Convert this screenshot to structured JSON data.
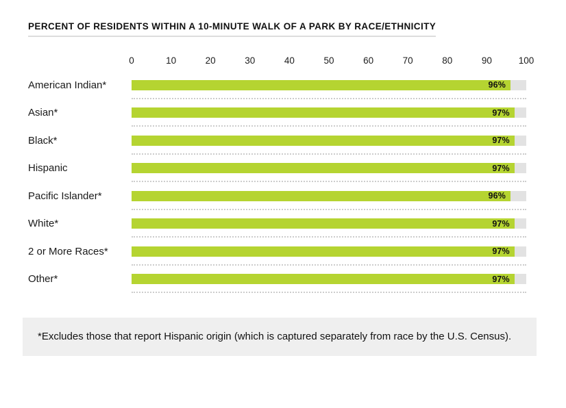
{
  "page": {
    "title": "PERCENT OF RESIDENTS WITHIN A 10-MINUTE WALK OF A PARK BY RACE/ETHNICITY",
    "footnote": "*Excludes those that report Hispanic origin (which is captured separately from race by the U.S. Census)."
  },
  "chart_data": {
    "type": "bar",
    "orientation": "horizontal",
    "title": "PERCENT OF RESIDENTS WITHIN A 10-MINUTE WALK OF A PARK BY RACE/ETHNICITY",
    "categories": [
      "American Indian*",
      "Asian*",
      "Black*",
      "Hispanic",
      "Pacific Islander*",
      "White*",
      "2 or More Races*",
      "Other*"
    ],
    "values": [
      96,
      97,
      97,
      97,
      96,
      97,
      97,
      97
    ],
    "value_labels": [
      "96%",
      "97%",
      "97%",
      "97%",
      "96%",
      "97%",
      "97%",
      "97%"
    ],
    "xlabel": "",
    "ylabel": "",
    "xlim": [
      0,
      100
    ],
    "x_ticks": [
      0,
      10,
      20,
      30,
      40,
      50,
      60,
      70,
      80,
      90,
      100
    ],
    "legend": "none",
    "grid": "dotted-row-separators",
    "colors": {
      "bar": "#b5d431",
      "track": "#e2e2e2",
      "separator": "#cccccc",
      "footnote_bg": "#efefef",
      "text": "#1a1a1a",
      "title_underline": "#dcdcdc"
    }
  }
}
